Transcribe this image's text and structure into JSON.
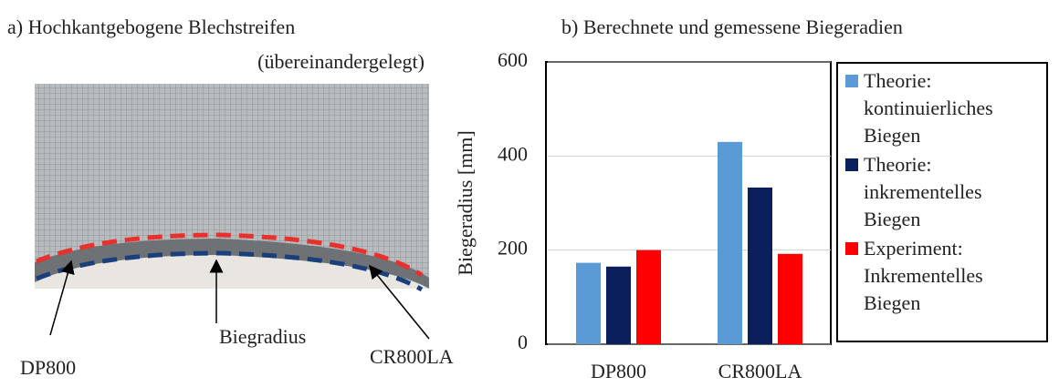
{
  "panel_a": {
    "title": "a) Hochkantgebogene Blechstreifen",
    "subtitle": "(übereinandergelegt)",
    "labels": [
      "DP800",
      "Biegradius",
      "CR800LA"
    ]
  },
  "chart_data": {
    "type": "bar",
    "title": "b) Berechnete und gemessene Biegeradien",
    "y_label": "Biegeradius [mm]",
    "categories": [
      "DP800",
      "CR800LA"
    ],
    "series": [
      {
        "name": "Theorie: kontinuierliches Biegen",
        "color": "#5b9bd5",
        "values": [
          173,
          430
        ]
      },
      {
        "name": "Theorie: inkrementelles Biegen",
        "color": "#0b1f5c",
        "values": [
          165,
          333
        ]
      },
      {
        "name": "Experiment: Inkrementelles Biegen",
        "color": "#ff0000",
        "values": [
          200,
          192
        ]
      }
    ],
    "ylim": [
      0,
      600
    ],
    "yticks": [
      0,
      200,
      400,
      600
    ],
    "grid": true
  }
}
